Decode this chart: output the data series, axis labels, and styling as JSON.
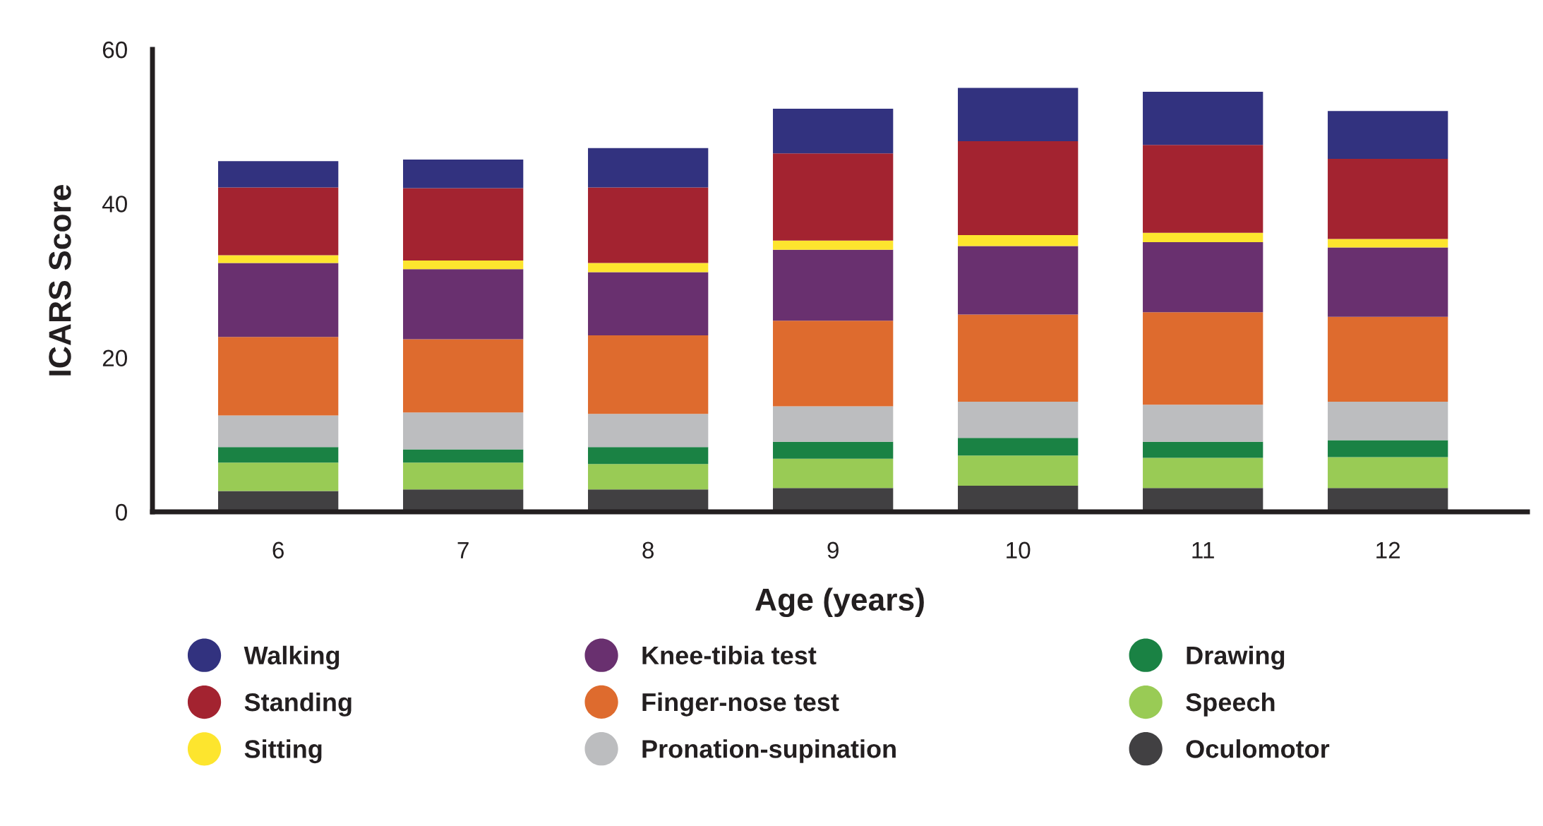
{
  "chart_data": {
    "type": "bar",
    "stacked": true,
    "xlabel": "Age (years)",
    "ylabel": "ICARS Score",
    "categories": [
      "6",
      "7",
      "8",
      "9",
      "10",
      "11",
      "12"
    ],
    "series": [
      {
        "name": "Oculomotor",
        "color": "#414042",
        "values": [
          2.7,
          2.9,
          2.9,
          3.1,
          3.4,
          3.1,
          3.1
        ]
      },
      {
        "name": "Speech",
        "color": "#99cb55",
        "values": [
          3.7,
          3.5,
          3.3,
          3.8,
          3.9,
          3.9,
          4.0
        ]
      },
      {
        "name": "Drawing",
        "color": "#1a8244",
        "values": [
          2.0,
          1.7,
          2.2,
          2.2,
          2.3,
          2.1,
          2.2
        ]
      },
      {
        "name": "Pronation-supination",
        "color": "#bcbdbf",
        "values": [
          4.1,
          4.8,
          4.3,
          4.6,
          4.7,
          4.8,
          5.0
        ]
      },
      {
        "name": "Finger-nose test",
        "color": "#de6b2e",
        "values": [
          10.2,
          9.5,
          10.2,
          11.1,
          11.3,
          12.0,
          11.0
        ]
      },
      {
        "name": "Knee-tibia test",
        "color": "#69306f",
        "values": [
          9.6,
          9.1,
          8.2,
          9.2,
          8.9,
          9.1,
          9.0
        ]
      },
      {
        "name": "Sitting",
        "color": "#fde52e",
        "values": [
          1.0,
          1.1,
          1.2,
          1.2,
          1.4,
          1.2,
          1.1
        ]
      },
      {
        "name": "Standing",
        "color": "#a32330",
        "values": [
          8.8,
          9.4,
          9.8,
          11.3,
          12.2,
          11.4,
          10.4
        ]
      },
      {
        "name": "Walking",
        "color": "#32327f",
        "values": [
          3.4,
          3.7,
          5.1,
          5.8,
          6.9,
          6.9,
          6.2
        ]
      }
    ],
    "ylim": [
      0,
      60
    ],
    "yticks": [
      0,
      20,
      40,
      60
    ],
    "grid": false,
    "legend": "bottom"
  }
}
